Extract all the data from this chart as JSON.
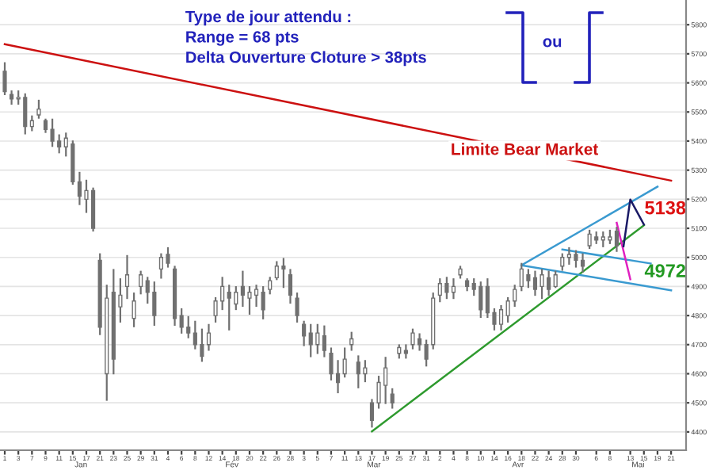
{
  "chart_data": {
    "type": "candlestick",
    "categories": [
      "1",
      null,
      "3",
      null,
      "7",
      null,
      "9",
      null,
      "11",
      null,
      "15",
      null,
      "17",
      null,
      "21",
      null,
      "23",
      null,
      "25",
      null,
      "29",
      null,
      "31",
      null,
      "4",
      null,
      "6",
      null,
      "8",
      null,
      "12",
      null,
      "14",
      null,
      "18",
      null,
      "20",
      null,
      "22",
      null,
      "26",
      null,
      "28",
      null,
      "3",
      null,
      "5",
      null,
      "7",
      null,
      "11",
      null,
      "13",
      null,
      "17",
      null,
      "19",
      null,
      "25",
      null,
      "27",
      null,
      "31",
      null,
      "2",
      null,
      "4",
      null,
      "8",
      null,
      "10",
      null,
      "14",
      null,
      "16",
      null,
      "18",
      null,
      "22",
      null,
      "24",
      null,
      "28",
      null,
      "30",
      null,
      null,
      "6",
      null,
      "8",
      null,
      null,
      "13",
      null,
      "15",
      null,
      "19",
      null,
      "21"
    ],
    "color": "#707070",
    "ohlc": [
      [
        5640,
        5668,
        5561,
        5570
      ],
      [
        5560,
        5571,
        5528,
        5545
      ],
      [
        5545,
        5571,
        5528,
        5550
      ],
      [
        5550,
        5561,
        5426,
        5450
      ],
      [
        5450,
        5485,
        5437,
        5470
      ],
      [
        5490,
        5539,
        5480,
        5510
      ],
      [
        5470,
        5474,
        5431,
        5440
      ],
      [
        5440,
        5474,
        5383,
        5400
      ],
      [
        5400,
        5420,
        5361,
        5380
      ],
      [
        5380,
        5426,
        5350,
        5410
      ],
      [
        5390,
        5399,
        5253,
        5260
      ],
      [
        5260,
        5291,
        5183,
        5210
      ],
      [
        5200,
        5264,
        5156,
        5230
      ],
      [
        5230,
        5237,
        5092,
        5100
      ],
      [
        4990,
        5011,
        4736,
        4760
      ],
      [
        4600,
        4903,
        4510,
        4860
      ],
      [
        4880,
        4957,
        4601,
        4650
      ],
      [
        4830,
        4925,
        4779,
        4870
      ],
      [
        4900,
        5005,
        4860,
        4940
      ],
      [
        4790,
        4876,
        4763,
        4850
      ],
      [
        4900,
        4951,
        4876,
        4940
      ],
      [
        4920,
        4930,
        4844,
        4880
      ],
      [
        4880,
        4914,
        4768,
        4800
      ],
      [
        4960,
        5011,
        4930,
        5000
      ],
      [
        5010,
        5032,
        4968,
        4980
      ],
      [
        4960,
        4968,
        4768,
        4790
      ],
      [
        4800,
        4822,
        4741,
        4760
      ],
      [
        4760,
        4795,
        4725,
        4740
      ],
      [
        4740,
        4779,
        4687,
        4700
      ],
      [
        4700,
        4752,
        4644,
        4660
      ],
      [
        4700,
        4768,
        4682,
        4740
      ],
      [
        4800,
        4860,
        4779,
        4850
      ],
      [
        4850,
        4930,
        4822,
        4900
      ],
      [
        4880,
        4903,
        4752,
        4860
      ],
      [
        4840,
        4898,
        4822,
        4880
      ],
      [
        4900,
        4951,
        4833,
        4870
      ],
      [
        4860,
        4898,
        4806,
        4880
      ],
      [
        4870,
        4903,
        4833,
        4890
      ],
      [
        4880,
        4898,
        4790,
        4820
      ],
      [
        4890,
        4930,
        4876,
        4920
      ],
      [
        4930,
        4984,
        4925,
        4970
      ],
      [
        4970,
        4995,
        4898,
        4960
      ],
      [
        4940,
        4957,
        4844,
        4870
      ],
      [
        4860,
        4876,
        4779,
        4800
      ],
      [
        4770,
        4779,
        4698,
        4730
      ],
      [
        4740,
        4768,
        4660,
        4700
      ],
      [
        4700,
        4768,
        4671,
        4740
      ],
      [
        4730,
        4763,
        4660,
        4680
      ],
      [
        4670,
        4687,
        4580,
        4600
      ],
      [
        4600,
        4644,
        4536,
        4570
      ],
      [
        4600,
        4687,
        4590,
        4650
      ],
      [
        4700,
        4741,
        4682,
        4720
      ],
      [
        4640,
        4660,
        4553,
        4600
      ],
      [
        4600,
        4644,
        4574,
        4620
      ],
      [
        4500,
        4510,
        4418,
        4440
      ],
      [
        4500,
        4590,
        4483,
        4570
      ],
      [
        4560,
        4655,
        4499,
        4620
      ],
      [
        4530,
        4547,
        4483,
        4500
      ],
      [
        4670,
        4698,
        4655,
        4690
      ],
      [
        4680,
        4698,
        4655,
        4670
      ],
      [
        4700,
        4752,
        4687,
        4740
      ],
      [
        4720,
        4736,
        4682,
        4700
      ],
      [
        4700,
        4714,
        4628,
        4650
      ],
      [
        4700,
        4876,
        4687,
        4860
      ],
      [
        4870,
        4925,
        4849,
        4910
      ],
      [
        4910,
        4930,
        4860,
        4880
      ],
      [
        4880,
        4925,
        4860,
        4900
      ],
      [
        4940,
        4968,
        4930,
        4960
      ],
      [
        4920,
        4925,
        4887,
        4900
      ],
      [
        4910,
        4925,
        4871,
        4890
      ],
      [
        4900,
        4914,
        4795,
        4820
      ],
      [
        4900,
        4925,
        4795,
        4810
      ],
      [
        4810,
        4822,
        4752,
        4770
      ],
      [
        4770,
        4833,
        4752,
        4820
      ],
      [
        4800,
        4860,
        4779,
        4850
      ],
      [
        4850,
        4903,
        4833,
        4890
      ],
      [
        4900,
        4978,
        4887,
        4960
      ],
      [
        4940,
        4957,
        4898,
        4920
      ],
      [
        4930,
        4951,
        4871,
        4890
      ],
      [
        4900,
        4957,
        4860,
        4940
      ],
      [
        4930,
        4951,
        4871,
        4890
      ],
      [
        4900,
        4951,
        4898,
        4940
      ],
      [
        4970,
        5011,
        4957,
        5000
      ],
      [
        5000,
        5032,
        4978,
        5010
      ],
      [
        5010,
        5022,
        4968,
        4990
      ],
      [
        4990,
        5011,
        4951,
        4970
      ],
      [
        5040,
        5092,
        5032,
        5080
      ],
      [
        5070,
        5086,
        5049,
        5060
      ],
      [
        5060,
        5086,
        5038,
        5070
      ],
      [
        5060,
        5092,
        5049,
        5070
      ],
      [
        5090,
        5102,
        5022,
        5040
      ],
      null,
      null,
      null,
      null,
      null,
      null,
      null,
      null
    ],
    "series": [
      {
        "type": "line",
        "name": "Limite Bear Market",
        "color": "#cc1111",
        "values": [
          5733,
          null,
          null,
          null,
          null,
          null,
          null,
          null,
          null,
          null,
          null,
          null,
          null,
          null,
          null,
          null,
          null,
          null,
          null,
          null,
          null,
          null,
          null,
          null,
          null,
          null,
          null,
          null,
          null,
          null,
          null,
          null,
          null,
          null,
          null,
          null,
          null,
          null,
          null,
          null,
          null,
          null,
          null,
          null,
          null,
          null,
          null,
          null,
          null,
          null,
          null,
          null,
          null,
          null,
          null,
          null,
          null,
          null,
          null,
          null,
          null,
          null,
          null,
          null,
          null,
          null,
          null,
          null,
          null,
          null,
          null,
          null,
          null,
          null,
          null,
          null,
          null,
          null,
          null,
          null,
          null,
          null,
          null,
          null,
          null,
          null,
          null,
          null,
          null,
          null,
          null,
          null,
          null,
          null,
          null,
          null,
          null,
          null,
          5264
        ]
      },
      {
        "type": "line",
        "color": "#2e9a2e",
        "values": [
          null,
          null,
          null,
          null,
          null,
          null,
          null,
          null,
          null,
          null,
          null,
          null,
          null,
          null,
          null,
          null,
          null,
          null,
          null,
          null,
          null,
          null,
          null,
          null,
          null,
          null,
          null,
          null,
          null,
          null,
          null,
          null,
          null,
          null,
          null,
          null,
          null,
          null,
          null,
          null,
          null,
          null,
          null,
          null,
          null,
          null,
          null,
          null,
          null,
          null,
          null,
          null,
          null,
          null,
          4402,
          null,
          null,
          null,
          null,
          null,
          null,
          null,
          null,
          null,
          null,
          null,
          null,
          null,
          null,
          null,
          null,
          null,
          null,
          null,
          null,
          null,
          null,
          null,
          null,
          null,
          null,
          null,
          null,
          null,
          null,
          null,
          null,
          null,
          null,
          null,
          null,
          null,
          null,
          null,
          5110,
          null,
          null,
          null,
          null
        ]
      },
      {
        "type": "line",
        "color": "#3a9ad0",
        "values": [
          null,
          null,
          null,
          null,
          null,
          null,
          null,
          null,
          null,
          null,
          null,
          null,
          null,
          null,
          null,
          null,
          null,
          null,
          null,
          null,
          null,
          null,
          null,
          null,
          null,
          null,
          null,
          null,
          null,
          null,
          null,
          null,
          null,
          null,
          null,
          null,
          null,
          null,
          null,
          null,
          null,
          null,
          null,
          null,
          null,
          null,
          null,
          null,
          null,
          null,
          null,
          null,
          null,
          null,
          null,
          null,
          null,
          null,
          null,
          null,
          null,
          null,
          null,
          null,
          null,
          null,
          null,
          null,
          null,
          null,
          null,
          null,
          null,
          null,
          null,
          null,
          4973,
          null,
          null,
          null,
          null,
          null,
          null,
          null,
          null,
          null,
          null,
          null,
          null,
          null,
          null,
          null,
          null,
          null,
          null,
          null,
          5243,
          null,
          null
        ]
      },
      {
        "type": "line",
        "color": "#3a9ad0",
        "values": [
          null,
          null,
          null,
          null,
          null,
          null,
          null,
          null,
          null,
          null,
          null,
          null,
          null,
          null,
          null,
          null,
          null,
          null,
          null,
          null,
          null,
          null,
          null,
          null,
          null,
          null,
          null,
          null,
          null,
          null,
          null,
          null,
          null,
          null,
          null,
          null,
          null,
          null,
          null,
          null,
          null,
          null,
          null,
          null,
          null,
          null,
          null,
          null,
          null,
          null,
          null,
          null,
          null,
          null,
          null,
          null,
          null,
          null,
          null,
          null,
          null,
          null,
          null,
          null,
          null,
          null,
          null,
          null,
          null,
          null,
          null,
          null,
          null,
          null,
          null,
          null,
          4973,
          null,
          null,
          null,
          null,
          null,
          null,
          null,
          null,
          null,
          null,
          null,
          null,
          null,
          null,
          null,
          null,
          null,
          null,
          null,
          null,
          null,
          4887
        ]
      },
      {
        "type": "line",
        "color": "#3a9ad0",
        "values": [
          null,
          null,
          null,
          null,
          null,
          null,
          null,
          null,
          null,
          null,
          null,
          null,
          null,
          null,
          null,
          null,
          null,
          null,
          null,
          null,
          null,
          null,
          null,
          null,
          null,
          null,
          null,
          null,
          null,
          null,
          null,
          null,
          null,
          null,
          null,
          null,
          null,
          null,
          null,
          null,
          null,
          null,
          null,
          null,
          null,
          null,
          null,
          null,
          null,
          null,
          null,
          null,
          null,
          null,
          null,
          null,
          null,
          null,
          null,
          null,
          null,
          null,
          null,
          null,
          null,
          null,
          null,
          null,
          null,
          null,
          null,
          null,
          null,
          null,
          null,
          null,
          null,
          null,
          null,
          null,
          null,
          null,
          5027,
          null,
          null,
          null,
          null,
          null,
          null,
          null,
          null,
          null,
          null,
          null,
          null,
          4979,
          null,
          null,
          null
        ]
      },
      {
        "type": "line",
        "color": "#e020c0",
        "values": [
          null,
          null,
          null,
          null,
          null,
          null,
          null,
          null,
          null,
          null,
          null,
          null,
          null,
          null,
          null,
          null,
          null,
          null,
          null,
          null,
          null,
          null,
          null,
          null,
          null,
          null,
          null,
          null,
          null,
          null,
          null,
          null,
          null,
          null,
          null,
          null,
          null,
          null,
          null,
          null,
          null,
          null,
          null,
          null,
          null,
          null,
          null,
          null,
          null,
          null,
          null,
          null,
          null,
          null,
          null,
          null,
          null,
          null,
          null,
          null,
          null,
          null,
          null,
          null,
          null,
          null,
          null,
          null,
          null,
          null,
          null,
          null,
          null,
          null,
          null,
          null,
          null,
          null,
          null,
          null,
          null,
          null,
          null,
          null,
          null,
          null,
          null,
          null,
          null,
          null,
          5119,
          null,
          4925,
          null,
          null,
          null,
          null,
          null,
          null
        ]
      },
      {
        "type": "line",
        "color": "#1a1a66",
        "values": [
          null,
          null,
          null,
          null,
          null,
          null,
          null,
          null,
          null,
          null,
          null,
          null,
          null,
          null,
          null,
          null,
          null,
          null,
          null,
          null,
          null,
          null,
          null,
          null,
          null,
          null,
          null,
          null,
          null,
          null,
          null,
          null,
          null,
          null,
          null,
          null,
          null,
          null,
          null,
          null,
          null,
          null,
          null,
          null,
          null,
          null,
          null,
          null,
          null,
          null,
          null,
          null,
          null,
          null,
          null,
          null,
          null,
          null,
          null,
          null,
          null,
          null,
          null,
          null,
          null,
          null,
          null,
          null,
          null,
          null,
          null,
          null,
          null,
          null,
          null,
          null,
          null,
          null,
          null,
          null,
          null,
          null,
          null,
          null,
          null,
          null,
          null,
          null,
          null,
          null,
          null,
          5038,
          5199,
          null,
          5113,
          null,
          null,
          null,
          null
        ]
      }
    ],
    "ylim": [
      4337,
      5885
    ],
    "yticks": [
      4400,
      4500,
      4600,
      4700,
      4800,
      4900,
      5000,
      5100,
      5200,
      5300,
      5400,
      5500,
      5600,
      5700,
      5800
    ],
    "grid": "y",
    "annotations": [
      "Type de jour attendu :",
      "Range = 68 pts",
      "Delta Ouverture Cloture > 38pts",
      "ou",
      "5138",
      "4972",
      "Jan",
      "Fév",
      "Mar",
      "Avr",
      "Mai"
    ]
  }
}
